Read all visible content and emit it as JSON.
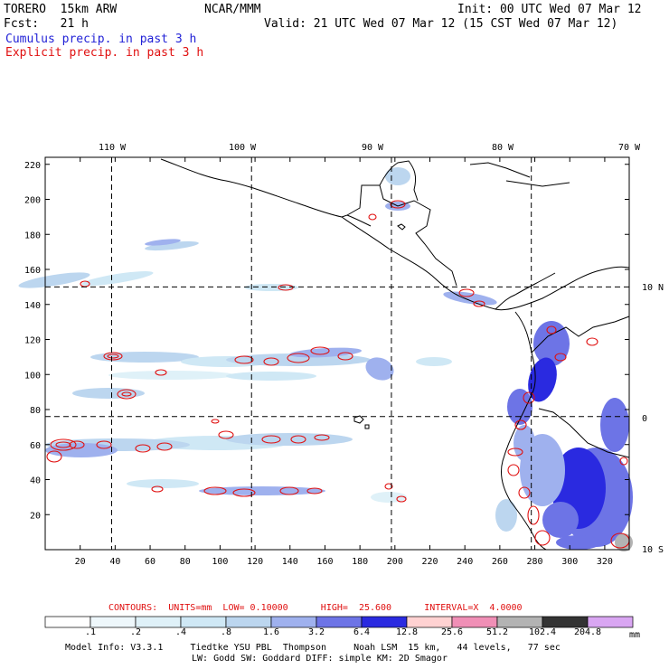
{
  "header": {
    "model": "TORERO  15km ARW",
    "org": "NCAR/MMM",
    "init": "Init: 00 UTC Wed 07 Mar 12",
    "fcst": "Fcst:   21 h",
    "valid": "Valid: 21 UTC Wed 07 Mar 12 (15 CST Wed 07 Mar 12)"
  },
  "legend": {
    "cumulus": "Cumulus precip. in past 3 h",
    "explicit": "Explicit precip. in past 3 h",
    "cumulus_color": "#1f1fd6",
    "explicit_color": "#e01010"
  },
  "map": {
    "lon_labels": [
      "110 W",
      "100 W",
      "90 W",
      "80 W",
      "70 W"
    ],
    "lat_labels": [
      "10 N",
      "0",
      "10 S"
    ],
    "y_ticks": [
      "220",
      "200",
      "180",
      "160",
      "140",
      "120",
      "100",
      "80",
      "60",
      "40",
      "20"
    ],
    "x_ticks": [
      "20",
      "40",
      "60",
      "80",
      "100",
      "120",
      "140",
      "160",
      "180",
      "200",
      "220",
      "240",
      "260",
      "280",
      "300",
      "320"
    ],
    "grid_y": [
      150,
      76
    ],
    "grid_x": [
      40,
      120,
      200,
      280
    ]
  },
  "contours": {
    "label": "CONTOURS:  UNITS=mm  LOW= 0.10000      HIGH=  25.600      INTERVAL=X  4.0000"
  },
  "scale": {
    "values": [
      ".1",
      ".2",
      ".4",
      ".8",
      "1.6",
      "3.2",
      "6.4",
      "12.8",
      "25.6",
      "51.2",
      "102.4",
      "204.8"
    ],
    "unit": "mm",
    "colors": [
      "#ffffff",
      "#eef7fb",
      "#dff1f8",
      "#cfe8f5",
      "#bcd6ef",
      "#9fb1ee",
      "#6d74e6",
      "#2a2ae0",
      "#ffd2d2",
      "#f08fb6",
      "#b3b3b3",
      "#333333",
      "#d9a6f2"
    ]
  },
  "footer": {
    "line1": "Model Info: V3.3.1     Tiedtke YSU PBL  Thompson     Noah LSM  15 km,   44 levels,   77 sec",
    "line2": "LW: Godd SW: Goddard DIFF: simple KM: 2D Smagor"
  }
}
